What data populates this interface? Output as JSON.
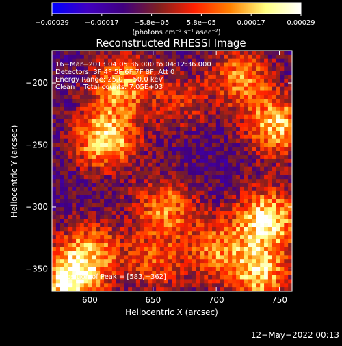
{
  "chart_data": {
    "type": "heatmap",
    "title": "Reconstructed RHESSI Image",
    "xlabel": "Heliocentric X (arcsec)",
    "ylabel": "Heliocentric Y (arcsec)",
    "xlim": [
      570,
      760
    ],
    "ylim": [
      -368,
      -174
    ],
    "x_ticks": [
      600,
      650,
      700,
      750
    ],
    "y_ticks": [
      -200,
      -250,
      -300,
      -350
    ],
    "x_tick_labels": [
      "600",
      "650",
      "700",
      "750"
    ],
    "y_tick_labels": [
      "−200",
      "−250",
      "−300",
      "−350"
    ],
    "colorbar": {
      "ticks": [
        "−0.00029",
        "−0.00017",
        "−5.8e−05",
        "5.8e−05",
        "0.00017",
        "0.00029"
      ],
      "unit_label": "(photons cm⁻² s⁻¹ asec⁻²)",
      "min": -0.00029,
      "max": 0.00029,
      "colors": [
        "#0000ff",
        "#4000c0",
        "#400080",
        "#802020",
        "#ff2000",
        "#ff8000",
        "#ffff80",
        "#ffffff"
      ]
    },
    "annotations": [
      "16−Mar−2013 04:05:36.000 to 04:12:36.000",
      "Detectors: 3F 4F 5F 6F 7F 8F, Att 0",
      "Energy Range: 25.0 − 50.0 keV",
      "Clean    Total counts: 7.05E+03"
    ],
    "peak_label": "Position of Peak = [583,−362]",
    "peak": [
      583,
      -362
    ],
    "hotspots": [
      {
        "x": 612,
        "y": -245,
        "value": 0.00029
      },
      {
        "x": 625,
        "y": -200,
        "value": 0.00022
      },
      {
        "x": 600,
        "y": -335,
        "value": 0.0002
      },
      {
        "x": 583,
        "y": -362,
        "value": 0.00029
      },
      {
        "x": 660,
        "y": -300,
        "value": 0.0002
      },
      {
        "x": 650,
        "y": -345,
        "value": 0.00015
      },
      {
        "x": 672,
        "y": -215,
        "value": 0.00012
      },
      {
        "x": 700,
        "y": -335,
        "value": 0.00018
      },
      {
        "x": 748,
        "y": -235,
        "value": 0.00026
      },
      {
        "x": 740,
        "y": -310,
        "value": 0.00029
      },
      {
        "x": 735,
        "y": -355,
        "value": 0.00024
      },
      {
        "x": 720,
        "y": -195,
        "value": 0.0002
      }
    ]
  },
  "footer": {
    "timestamp": "12−May−2022 00:13"
  }
}
